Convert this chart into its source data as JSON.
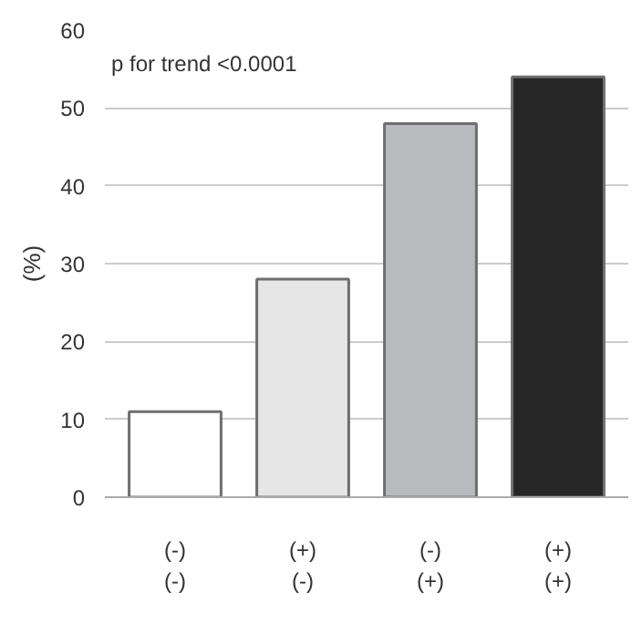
{
  "chart_data": {
    "type": "bar",
    "ylabel": "(%)",
    "categories": [
      "(-)\n(-)",
      "(+)\n(-)",
      "(-)\n(+)",
      "(+)\n(+)"
    ],
    "values": [
      11,
      28,
      48,
      54
    ],
    "colors": [
      "#ffffff",
      "#e6e6e6",
      "#b9babd",
      "#262626"
    ],
    "ylim": [
      0,
      60
    ],
    "yticks": [
      0,
      10,
      20,
      30,
      40,
      50,
      60
    ],
    "grid": "y",
    "annotations": [
      "p for trend <0.0001"
    ]
  }
}
